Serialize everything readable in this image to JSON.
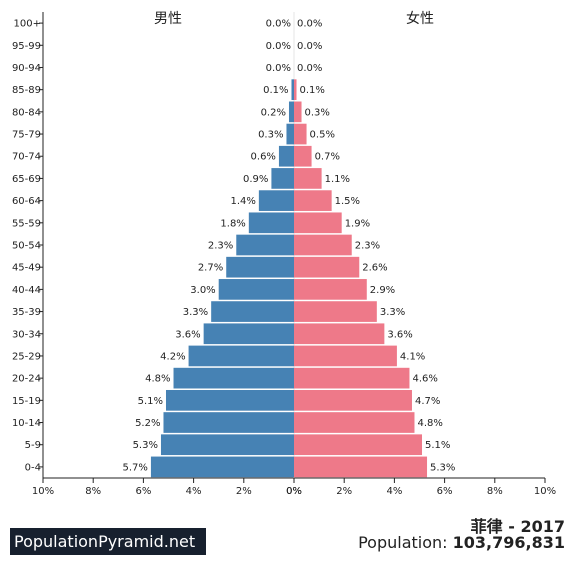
{
  "chart_data": {
    "type": "bar",
    "orientation": "horizontal-pyramid",
    "categories": [
      "100+",
      "95-99",
      "90-94",
      "85-89",
      "80-84",
      "75-79",
      "70-74",
      "65-69",
      "60-64",
      "55-59",
      "50-54",
      "45-49",
      "40-44",
      "35-39",
      "30-34",
      "25-29",
      "20-24",
      "15-19",
      "10-14",
      "5-9",
      "0-4"
    ],
    "series": [
      {
        "name": "男性",
        "color": "#4682b4",
        "values": [
          0.0,
          0.0,
          0.0,
          0.1,
          0.2,
          0.3,
          0.6,
          0.9,
          1.4,
          1.8,
          2.3,
          2.7,
          3.0,
          3.3,
          3.6,
          4.2,
          4.8,
          5.1,
          5.2,
          5.3,
          5.7
        ],
        "labels": [
          "0.0%",
          "0.0%",
          "0.0%",
          "0.1%",
          "0.2%",
          "0.3%",
          "0.6%",
          "0.9%",
          "1.4%",
          "1.8%",
          "2.3%",
          "2.7%",
          "3.0%",
          "3.3%",
          "3.6%",
          "4.2%",
          "4.8%",
          "5.1%",
          "5.2%",
          "5.3%",
          "5.7%"
        ]
      },
      {
        "name": "女性",
        "color": "#ee7989",
        "values": [
          0.0,
          0.0,
          0.0,
          0.1,
          0.3,
          0.5,
          0.7,
          1.1,
          1.5,
          1.9,
          2.3,
          2.6,
          2.9,
          3.3,
          3.6,
          4.1,
          4.6,
          4.7,
          4.8,
          5.1,
          5.3
        ],
        "labels": [
          "0.0%",
          "0.0%",
          "0.0%",
          "0.1%",
          "0.3%",
          "0.5%",
          "0.7%",
          "1.1%",
          "1.5%",
          "1.9%",
          "2.3%",
          "2.6%",
          "2.9%",
          "3.3%",
          "3.6%",
          "4.1%",
          "4.6%",
          "4.7%",
          "4.8%",
          "5.1%",
          "5.3%"
        ]
      }
    ],
    "xlim": [
      0,
      10
    ],
    "xticks_left": [
      "10%",
      "8%",
      "6%",
      "4%",
      "2%",
      "0%"
    ],
    "xticks_right": [
      "0%",
      "2%",
      "4%",
      "6%",
      "8%",
      "10%"
    ],
    "grid": false,
    "title": "菲律 - 2017",
    "xlabel": "",
    "ylabel": ""
  },
  "footer": {
    "brand": "PopulationPyramid.net",
    "country_year": "菲律 - 2017",
    "population_label": "Population:",
    "population_value": "103,796,831"
  }
}
